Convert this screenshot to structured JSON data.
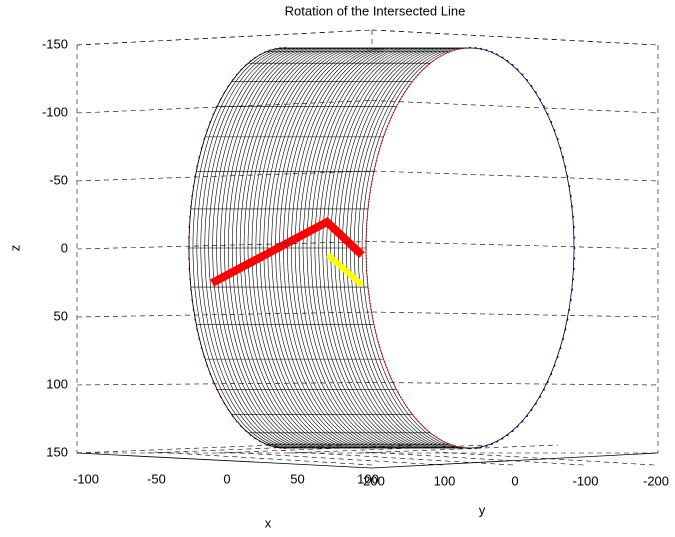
{
  "chart_data": {
    "type": "surface3d",
    "title": "Rotation of the Intersected Line",
    "xlabel": "x",
    "ylabel": "y",
    "zlabel": "z",
    "xlim": [
      -100,
      100
    ],
    "xticks": [
      -100,
      -50,
      0,
      50,
      100
    ],
    "ylim": [
      200,
      -200
    ],
    "yticks": [
      200,
      100,
      0,
      -100,
      -200
    ],
    "zlim": [
      -150,
      150
    ],
    "zticks": [
      -150,
      -100,
      -50,
      0,
      50,
      100,
      150
    ],
    "grid": true
  }
}
